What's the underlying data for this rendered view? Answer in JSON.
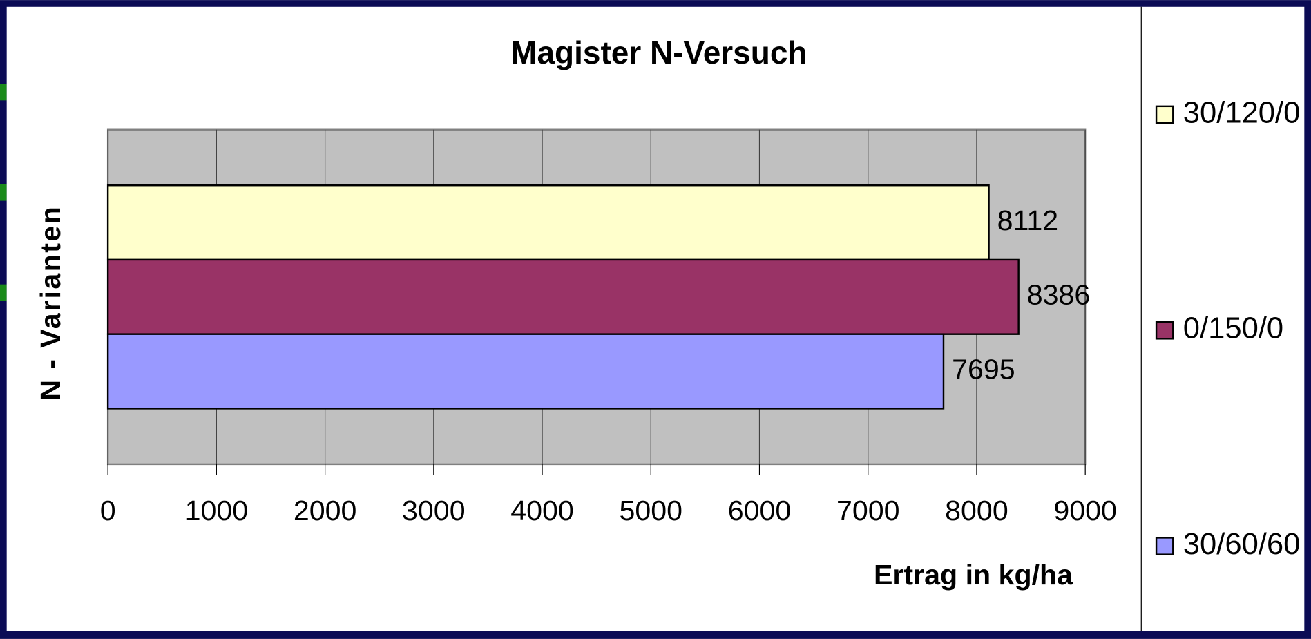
{
  "chart_data": {
    "type": "bar",
    "orientation": "horizontal",
    "title": "Magister N-Versuch",
    "x_label": "Ertrag in kg/ha",
    "y_label": "N - Varianten",
    "categories": [
      null
    ],
    "series": [
      {
        "name": "30/120/0",
        "color": "#ffffcc",
        "values": [
          8112
        ]
      },
      {
        "name": "0/150/0",
        "color": "#993366",
        "values": [
          8386
        ]
      },
      {
        "name": "30/60/60",
        "color": "#9999ff",
        "values": [
          7695
        ]
      }
    ],
    "xlim": [
      0,
      9000
    ],
    "xticks": [
      0,
      1000,
      2000,
      3000,
      4000,
      5000,
      6000,
      7000,
      8000,
      9000
    ],
    "grid": true,
    "legend": "right"
  }
}
